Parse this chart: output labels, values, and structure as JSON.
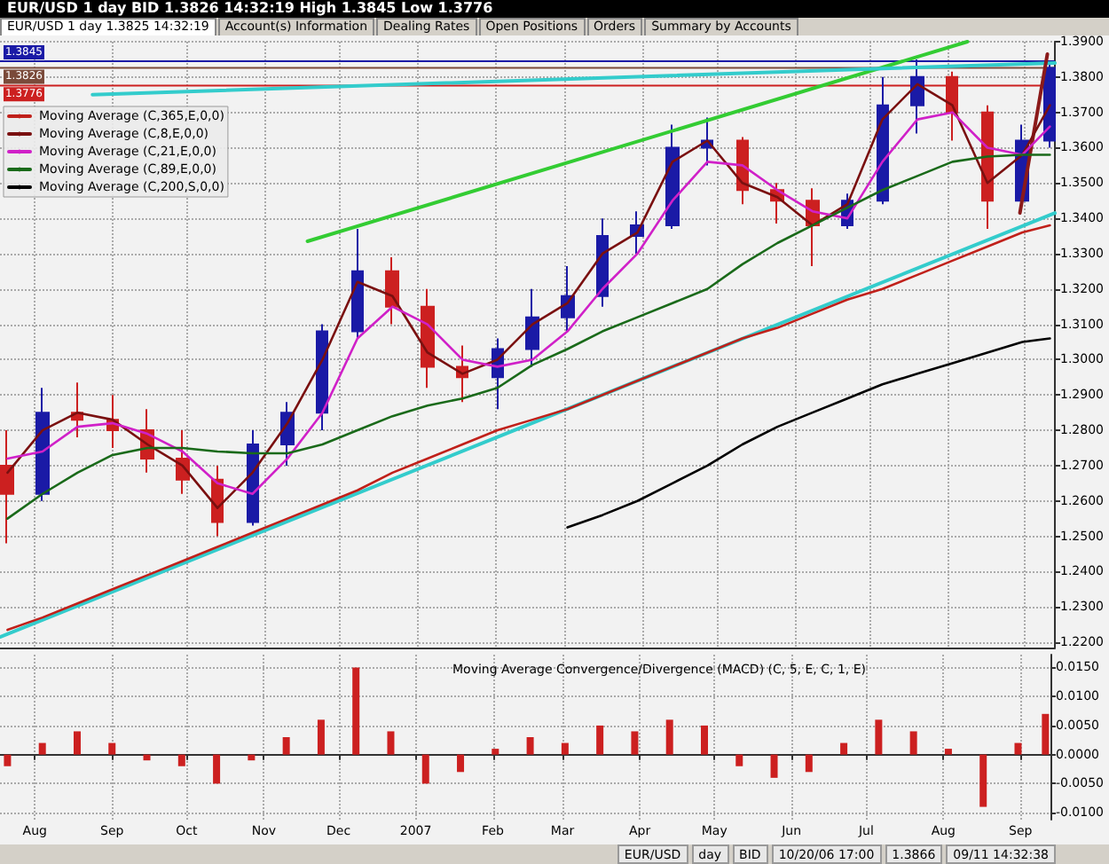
{
  "chart_data": [
    {
      "type": "candlestick",
      "title": "EUR/USD 1 day BID 1.3826 14:32:19 High 1.3845 Low 1.3776",
      "annotations": [
        "EUR/USD 1 day 1.3825 14:32:19",
        "Account(s) Information",
        "Dealing Rates",
        "Open Positions",
        "Orders",
        "Summary by Accounts",
        "EUR/USD",
        "day",
        "BID",
        "10/20/06 17:00",
        "1.3866",
        "09/11 14:32:38"
      ],
      "x": [
        "2006-07-21",
        "2006-08-04",
        "2006-08-18",
        "2006-09-01",
        "2006-09-15",
        "2006-09-29",
        "2006-10-13",
        "2006-10-27",
        "2006-11-10",
        "2006-11-24",
        "2006-12-08",
        "2006-12-22",
        "2007-01-05",
        "2007-01-19",
        "2007-02-02",
        "2007-02-16",
        "2007-03-02",
        "2007-03-16",
        "2007-03-30",
        "2007-04-13",
        "2007-04-27",
        "2007-05-11",
        "2007-05-25",
        "2007-06-08",
        "2007-06-22",
        "2007-07-06",
        "2007-07-20",
        "2007-08-03",
        "2007-08-17",
        "2007-08-31",
        "2007-09-11"
      ],
      "ohlc": [
        [
          1.27,
          1.28,
          1.248,
          1.262
        ],
        [
          1.262,
          1.292,
          1.26,
          1.285
        ],
        [
          1.285,
          1.2935,
          1.278,
          1.283
        ],
        [
          1.283,
          1.29,
          1.275,
          1.28
        ],
        [
          1.28,
          1.286,
          1.268,
          1.272
        ],
        [
          1.272,
          1.28,
          1.262,
          1.266
        ],
        [
          1.266,
          1.27,
          1.25,
          1.254
        ],
        [
          1.254,
          1.28,
          1.253,
          1.276
        ],
        [
          1.276,
          1.288,
          1.27,
          1.285
        ],
        [
          1.285,
          1.31,
          1.28,
          1.308
        ],
        [
          1.308,
          1.337,
          1.306,
          1.325
        ],
        [
          1.325,
          1.329,
          1.31,
          1.315
        ],
        [
          1.315,
          1.32,
          1.292,
          1.298
        ],
        [
          1.298,
          1.304,
          1.288,
          1.295
        ],
        [
          1.295,
          1.306,
          1.286,
          1.303
        ],
        [
          1.303,
          1.32,
          1.298,
          1.312
        ],
        [
          1.312,
          1.3265,
          1.308,
          1.318
        ],
        [
          1.318,
          1.34,
          1.315,
          1.335
        ],
        [
          1.335,
          1.342,
          1.33,
          1.338
        ],
        [
          1.338,
          1.3665,
          1.337,
          1.36
        ],
        [
          1.36,
          1.3685,
          1.355,
          1.362
        ],
        [
          1.362,
          1.363,
          1.344,
          1.348
        ],
        [
          1.348,
          1.35,
          1.3385,
          1.345
        ],
        [
          1.345,
          1.3485,
          1.3265,
          1.338
        ],
        [
          1.338,
          1.347,
          1.337,
          1.345
        ],
        [
          1.345,
          1.38,
          1.344,
          1.372
        ],
        [
          1.372,
          1.385,
          1.364,
          1.38
        ],
        [
          1.38,
          1.3815,
          1.362,
          1.37
        ],
        [
          1.37,
          1.372,
          1.337,
          1.345
        ],
        [
          1.345,
          1.3665,
          1.344,
          1.362
        ],
        [
          1.362,
          1.3845,
          1.36,
          1.3826
        ]
      ],
      "colors": [
        "#cc2020",
        "#1a1aa6",
        "#cc2020",
        "#cc2020",
        "#cc2020",
        "#cc2020",
        "#cc2020",
        "#1a1aa6",
        "#1a1aa6",
        "#1a1aa6",
        "#1a1aa6",
        "#cc2020",
        "#cc2020",
        "#cc2020",
        "#1a1aa6",
        "#1a1aa6",
        "#1a1aa6",
        "#1a1aa6",
        "#1a1aa6",
        "#1a1aa6",
        "#1a1aa6",
        "#cc2020",
        "#cc2020",
        "#cc2020",
        "#1a1aa6",
        "#1a1aa6",
        "#1a1aa6",
        "#cc2020",
        "#cc2020",
        "#1a1aa6",
        "#1a1aa6"
      ],
      "series": [
        {
          "type": "line",
          "name": "Moving Average (C,365,E,0,0)",
          "color": "#c0201a",
          "values": [
            1.2235,
            1.227,
            1.231,
            1.235,
            1.239,
            1.243,
            1.247,
            1.251,
            1.255,
            1.259,
            1.263,
            1.268,
            1.272,
            1.276,
            1.28,
            1.283,
            1.286,
            1.29,
            1.294,
            1.298,
            1.302,
            1.306,
            1.309,
            1.313,
            1.317,
            1.32,
            1.324,
            1.328,
            1.332,
            1.336,
            1.338
          ]
        },
        {
          "type": "line",
          "name": "Moving Average (C,8,E,0,0)",
          "color": "#7a1010",
          "values": [
            1.268,
            1.28,
            1.285,
            1.283,
            1.276,
            1.27,
            1.258,
            1.268,
            1.282,
            1.3,
            1.322,
            1.318,
            1.302,
            1.296,
            1.3,
            1.31,
            1.316,
            1.33,
            1.336,
            1.356,
            1.362,
            1.35,
            1.346,
            1.338,
            1.344,
            1.368,
            1.378,
            1.372,
            1.35,
            1.358,
            1.372
          ]
        },
        {
          "type": "line",
          "name": "Moving Average (C,21,E,0,0)",
          "color": "#d020c8",
          "values": [
            1.272,
            1.274,
            1.281,
            1.282,
            1.279,
            1.274,
            1.265,
            1.262,
            1.272,
            1.285,
            1.306,
            1.315,
            1.31,
            1.3,
            1.298,
            1.3,
            1.308,
            1.32,
            1.33,
            1.345,
            1.356,
            1.355,
            1.348,
            1.342,
            1.34,
            1.356,
            1.368,
            1.37,
            1.36,
            1.358,
            1.366
          ]
        },
        {
          "type": "line",
          "name": "Moving Average (C,89,E,0,0)",
          "color": "#1a6a1a",
          "values": [
            1.255,
            1.262,
            1.268,
            1.273,
            1.275,
            1.275,
            1.274,
            1.2735,
            1.2735,
            1.276,
            1.28,
            1.284,
            1.287,
            1.289,
            1.292,
            1.2985,
            1.303,
            1.308,
            1.312,
            1.316,
            1.32,
            1.327,
            1.333,
            1.338,
            1.343,
            1.348,
            1.352,
            1.356,
            1.3575,
            1.358,
            1.358
          ]
        },
        {
          "type": "line",
          "name": "Moving Average (C,200,S,0,0)",
          "color": "#000000",
          "values": [
            null,
            null,
            null,
            null,
            null,
            null,
            null,
            null,
            null,
            null,
            null,
            null,
            null,
            null,
            null,
            null,
            1.2525,
            1.256,
            1.26,
            1.265,
            1.27,
            1.276,
            1.281,
            1.285,
            1.289,
            1.293,
            1.296,
            1.299,
            1.302,
            1.305,
            1.306
          ]
        },
        {
          "type": "line",
          "color": "#33cc33",
          "x": [
            "2006-11-18",
            "2007-08-09"
          ],
          "values": [
            1.3335,
            1.39
          ]
        },
        {
          "type": "line",
          "color": "#33cccc",
          "x": [
            "2006-08-24",
            "2007-09-13"
          ],
          "values": [
            1.375,
            1.384
          ]
        },
        {
          "type": "line",
          "color": "#33cccc",
          "x": [
            "2006-07-18",
            "2007-09-13"
          ],
          "values": [
            1.2215,
            1.3415
          ]
        },
        {
          "type": "line",
          "color": "#8b1a1a",
          "x": [
            "2007-08-30",
            "2007-09-10"
          ],
          "values": [
            1.3415,
            1.3865
          ]
        }
      ],
      "ref_lines": [
        {
          "axis": "y",
          "value": 1.3845,
          "label": "1.3845",
          "color": "#1a1aa6"
        },
        {
          "axis": "y",
          "value": 1.3826,
          "label": "1.3826",
          "color": "#7a4a3a"
        },
        {
          "axis": "y",
          "value": 1.3776,
          "label": "1.3776",
          "color": "#cc2020"
        }
      ],
      "xlim": [
        "2006-07-18",
        "2007-09-13"
      ],
      "ylim": [
        1.2185,
        1.39
      ],
      "yticks": [
        {
          "value": 1.22,
          "label": "1.2200"
        },
        {
          "value": 1.23,
          "label": "1.2300"
        },
        {
          "value": 1.24,
          "label": "1.2400"
        },
        {
          "value": 1.25,
          "label": "1.2500"
        },
        {
          "value": 1.26,
          "label": "1.2600"
        },
        {
          "value": 1.27,
          "label": "1.2700"
        },
        {
          "value": 1.28,
          "label": "1.2800"
        },
        {
          "value": 1.29,
          "label": "1.2900"
        },
        {
          "value": 1.3,
          "label": "1.3000"
        },
        {
          "value": 1.31,
          "label": "1.3100"
        },
        {
          "value": 1.32,
          "label": "1.3200"
        },
        {
          "value": 1.33,
          "label": "1.3300"
        },
        {
          "value": 1.34,
          "label": "1.3400"
        },
        {
          "value": 1.35,
          "label": "1.3500"
        },
        {
          "value": 1.36,
          "label": "1.3600"
        },
        {
          "value": 1.37,
          "label": "1.3700"
        },
        {
          "value": 1.38,
          "label": "1.3800"
        },
        {
          "value": 1.39,
          "label": "1.3900"
        }
      ],
      "xticks": [
        {
          "value": "2006-08-01",
          "label": null
        },
        {
          "value": "2006-09-01",
          "label": null
        },
        {
          "value": "2006-10-01",
          "label": null
        },
        {
          "value": "2006-11-01",
          "label": null
        },
        {
          "value": "2006-12-01",
          "label": null
        },
        {
          "value": "2007-01-01",
          "label": null
        },
        {
          "value": "2007-02-01",
          "label": null
        },
        {
          "value": "2007-03-01",
          "label": null
        },
        {
          "value": "2007-04-01",
          "label": null
        },
        {
          "value": "2007-05-01",
          "label": null
        },
        {
          "value": "2007-06-01",
          "label": null
        },
        {
          "value": "2007-07-01",
          "label": null
        },
        {
          "value": "2007-08-01",
          "label": null
        },
        {
          "value": "2007-09-01",
          "label": null
        }
      ],
      "tick_labels": "y",
      "grid": true,
      "legend": "top left",
      "line_style": "solid"
    },
    {
      "type": "bar",
      "title": "Moving Average Convergence/Divergence (MACD) (C, 5, E, C, 1, E)",
      "color": "#cc2020",
      "x": [
        "2006-07-21",
        "2006-08-04",
        "2006-08-18",
        "2006-09-01",
        "2006-09-15",
        "2006-09-29",
        "2006-10-13",
        "2006-10-27",
        "2006-11-10",
        "2006-11-24",
        "2006-12-08",
        "2006-12-22",
        "2007-01-05",
        "2007-01-19",
        "2007-02-02",
        "2007-02-16",
        "2007-03-02",
        "2007-03-16",
        "2007-03-30",
        "2007-04-13",
        "2007-04-27",
        "2007-05-11",
        "2007-05-25",
        "2007-06-08",
        "2007-06-22",
        "2007-07-06",
        "2007-07-20",
        "2007-08-03",
        "2007-08-17",
        "2007-08-31",
        "2007-09-11"
      ],
      "values": [
        -0.002,
        0.002,
        0.004,
        0.002,
        -0.001,
        -0.002,
        -0.005,
        -0.001,
        0.003,
        0.006,
        0.015,
        0.004,
        -0.005,
        -0.003,
        0.001,
        0.003,
        0.002,
        0.005,
        0.004,
        0.006,
        0.005,
        -0.002,
        -0.004,
        -0.003,
        0.002,
        0.006,
        0.004,
        0.001,
        -0.009,
        0.002,
        0.007
      ],
      "xlim": [
        "2006-07-18",
        "2007-09-13"
      ],
      "ylim": [
        -0.0112,
        0.0172
      ],
      "yticks": [
        {
          "value": -0.01,
          "label": "-0.0100"
        },
        {
          "value": -0.005,
          "label": "-0.0050"
        },
        {
          "value": 0,
          "label": "0.0000"
        },
        {
          "value": 0.005,
          "label": "0.0050"
        },
        {
          "value": 0.01,
          "label": "0.0100"
        },
        {
          "value": 0.015,
          "label": "0.0150"
        }
      ],
      "xticks": [
        {
          "value": "2006-08-01",
          "label": "Aug"
        },
        {
          "value": "2006-09-01",
          "label": "Sep"
        },
        {
          "value": "2006-10-01",
          "label": "Oct"
        },
        {
          "value": "2006-11-01",
          "label": "Nov"
        },
        {
          "value": "2006-12-01",
          "label": "Dec"
        },
        {
          "value": "2007-01-01",
          "label": "2007"
        },
        {
          "value": "2007-02-01",
          "label": "Feb"
        },
        {
          "value": "2007-03-01",
          "label": "Mar"
        },
        {
          "value": "2007-04-01",
          "label": "Apr"
        },
        {
          "value": "2007-05-01",
          "label": "May"
        },
        {
          "value": "2007-06-01",
          "label": "Jun"
        },
        {
          "value": "2007-07-01",
          "label": "Jul"
        },
        {
          "value": "2007-08-01",
          "label": "Aug"
        },
        {
          "value": "2007-09-01",
          "label": "Sep"
        }
      ],
      "grid": true
    }
  ]
}
